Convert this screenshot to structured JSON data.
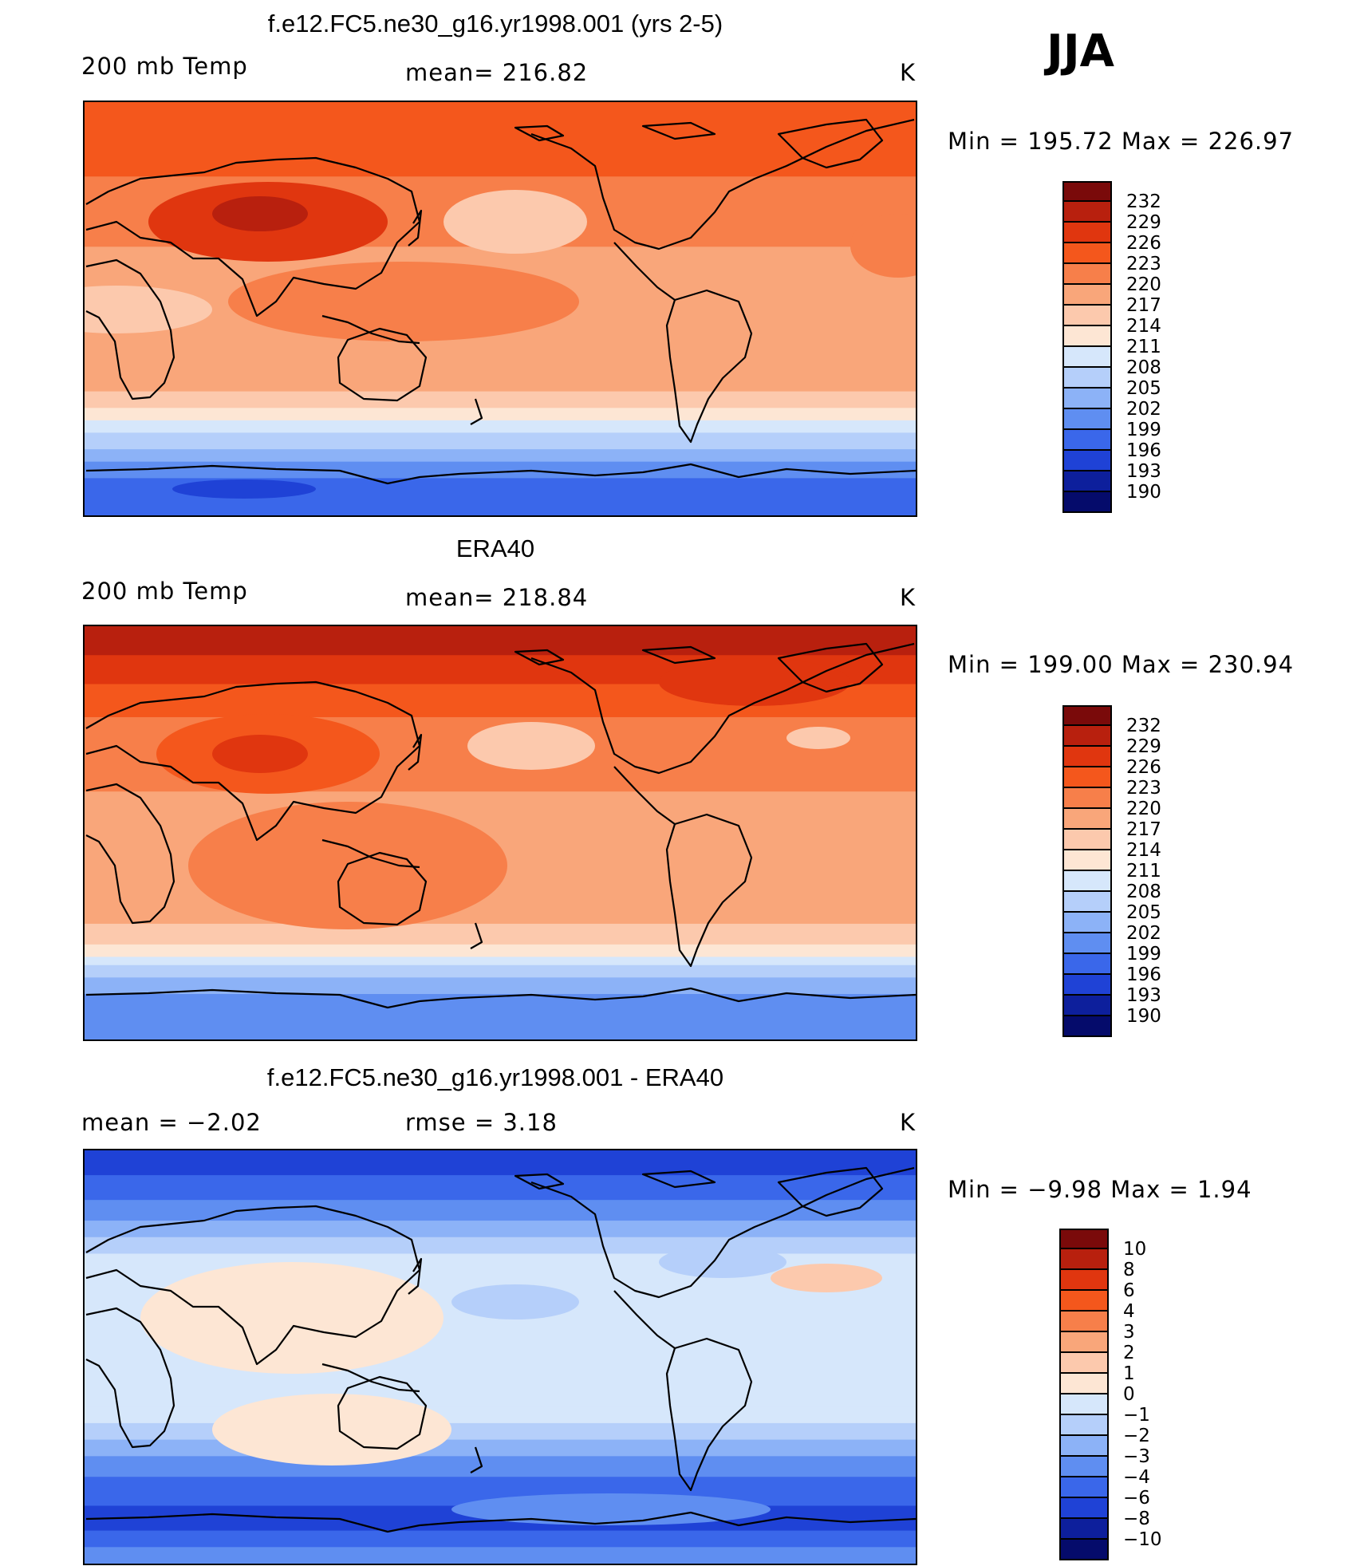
{
  "season": "JJA",
  "panels": [
    {
      "title": "f.e12.FC5.ne30_g16.yr1998.001 (yrs 2-5)",
      "left_label": "200 mb Temp",
      "center_label": "mean= 216.82",
      "units": "K",
      "minmax": "Min = 195.72 Max = 226.97",
      "min": 195.72,
      "max": 226.97,
      "mean": 216.82,
      "colorbar_levels": [
        "232",
        "229",
        "226",
        "223",
        "220",
        "217",
        "214",
        "211",
        "208",
        "205",
        "202",
        "199",
        "196",
        "193",
        "190"
      ],
      "colorbar_colors": [
        "#7a0a0a",
        "#b8200e",
        "#e0360f",
        "#f4571c",
        "#f77f4a",
        "#f9a67a",
        "#fcc9ad",
        "#fde6d4",
        "#d6e7fb",
        "#b5cffa",
        "#8cb2f7",
        "#5f8ef1",
        "#3a67ea",
        "#1f42d6",
        "#0d1f9c",
        "#050b6b"
      ],
      "field_bands": [
        {
          "level": 0.0,
          "color": "#f4571c"
        },
        {
          "level": 0.18,
          "color": "#f77f4a"
        },
        {
          "level": 0.35,
          "color": "#f9a67a"
        },
        {
          "level": 0.62,
          "color": "#f9a67a"
        },
        {
          "level": 0.7,
          "color": "#fcc9ad"
        },
        {
          "level": 0.74,
          "color": "#fde6d4"
        },
        {
          "level": 0.77,
          "color": "#d6e7fb"
        },
        {
          "level": 0.8,
          "color": "#b5cffa"
        },
        {
          "level": 0.84,
          "color": "#8cb2f7"
        },
        {
          "level": 0.87,
          "color": "#5f8ef1"
        },
        {
          "level": 0.91,
          "color": "#3a67ea"
        },
        {
          "level": 1.0,
          "color": "#3a67ea"
        }
      ],
      "warm_core_color": "#e0360f"
    },
    {
      "title": "ERA40",
      "left_label": "200 mb Temp",
      "center_label": "mean= 218.84",
      "units": "K",
      "minmax": "Min = 199.00 Max = 230.94",
      "min": 199.0,
      "max": 230.94,
      "mean": 218.84,
      "colorbar_levels": [
        "232",
        "229",
        "226",
        "223",
        "220",
        "217",
        "214",
        "211",
        "208",
        "205",
        "202",
        "199",
        "196",
        "193",
        "190"
      ],
      "colorbar_colors": [
        "#7a0a0a",
        "#b8200e",
        "#e0360f",
        "#f4571c",
        "#f77f4a",
        "#f9a67a",
        "#fcc9ad",
        "#fde6d4",
        "#d6e7fb",
        "#b5cffa",
        "#8cb2f7",
        "#5f8ef1",
        "#3a67ea",
        "#1f42d6",
        "#0d1f9c",
        "#050b6b"
      ],
      "field_bands": [
        {
          "level": 0.0,
          "color": "#b8200e"
        },
        {
          "level": 0.07,
          "color": "#e0360f"
        },
        {
          "level": 0.14,
          "color": "#f4571c"
        },
        {
          "level": 0.22,
          "color": "#f77f4a"
        },
        {
          "level": 0.4,
          "color": "#f9a67a"
        },
        {
          "level": 0.72,
          "color": "#fcc9ad"
        },
        {
          "level": 0.77,
          "color": "#fde6d4"
        },
        {
          "level": 0.8,
          "color": "#d6e7fb"
        },
        {
          "level": 0.82,
          "color": "#b5cffa"
        },
        {
          "level": 0.85,
          "color": "#8cb2f7"
        },
        {
          "level": 0.89,
          "color": "#5f8ef1"
        },
        {
          "level": 1.0,
          "color": "#5f8ef1"
        }
      ],
      "warm_core_color": "#e0360f"
    },
    {
      "title": "f.e12.FC5.ne30_g16.yr1998.001 - ERA40",
      "left_label": "mean =   −2.02",
      "center_label": "rmse =    3.18",
      "units": "K",
      "minmax": "Min =   −9.98 Max =    1.94",
      "min": -9.98,
      "max": 1.94,
      "mean": -2.02,
      "rmse": 3.18,
      "colorbar_levels": [
        "10",
        "8",
        "6",
        "4",
        "3",
        "2",
        "1",
        "0",
        "−1",
        "−2",
        "−3",
        "−4",
        "−6",
        "−8",
        "−10"
      ],
      "colorbar_colors": [
        "#7a0a0a",
        "#b8200e",
        "#e0360f",
        "#f4571c",
        "#f77f4a",
        "#f9a67a",
        "#fcc9ad",
        "#fde6d4",
        "#d6e7fb",
        "#b5cffa",
        "#8cb2f7",
        "#5f8ef1",
        "#3a67ea",
        "#1f42d6",
        "#0d1f9c",
        "#050b6b"
      ],
      "field_bands": [
        {
          "level": 0.0,
          "color": "#1f42d6"
        },
        {
          "level": 0.06,
          "color": "#3a67ea"
        },
        {
          "level": 0.12,
          "color": "#5f8ef1"
        },
        {
          "level": 0.17,
          "color": "#8cb2f7"
        },
        {
          "level": 0.21,
          "color": "#b5cffa"
        },
        {
          "level": 0.25,
          "color": "#d6e7fb"
        },
        {
          "level": 0.62,
          "color": "#d6e7fb"
        },
        {
          "level": 0.66,
          "color": "#b5cffa"
        },
        {
          "level": 0.7,
          "color": "#8cb2f7"
        },
        {
          "level": 0.74,
          "color": "#5f8ef1"
        },
        {
          "level": 0.79,
          "color": "#3a67ea"
        },
        {
          "level": 0.86,
          "color": "#1f42d6"
        },
        {
          "level": 0.92,
          "color": "#3a67ea"
        },
        {
          "level": 0.96,
          "color": "#5f8ef1"
        },
        {
          "level": 1.0,
          "color": "#5f8ef1"
        }
      ],
      "warm_core_color": "#fde6d4"
    }
  ]
}
